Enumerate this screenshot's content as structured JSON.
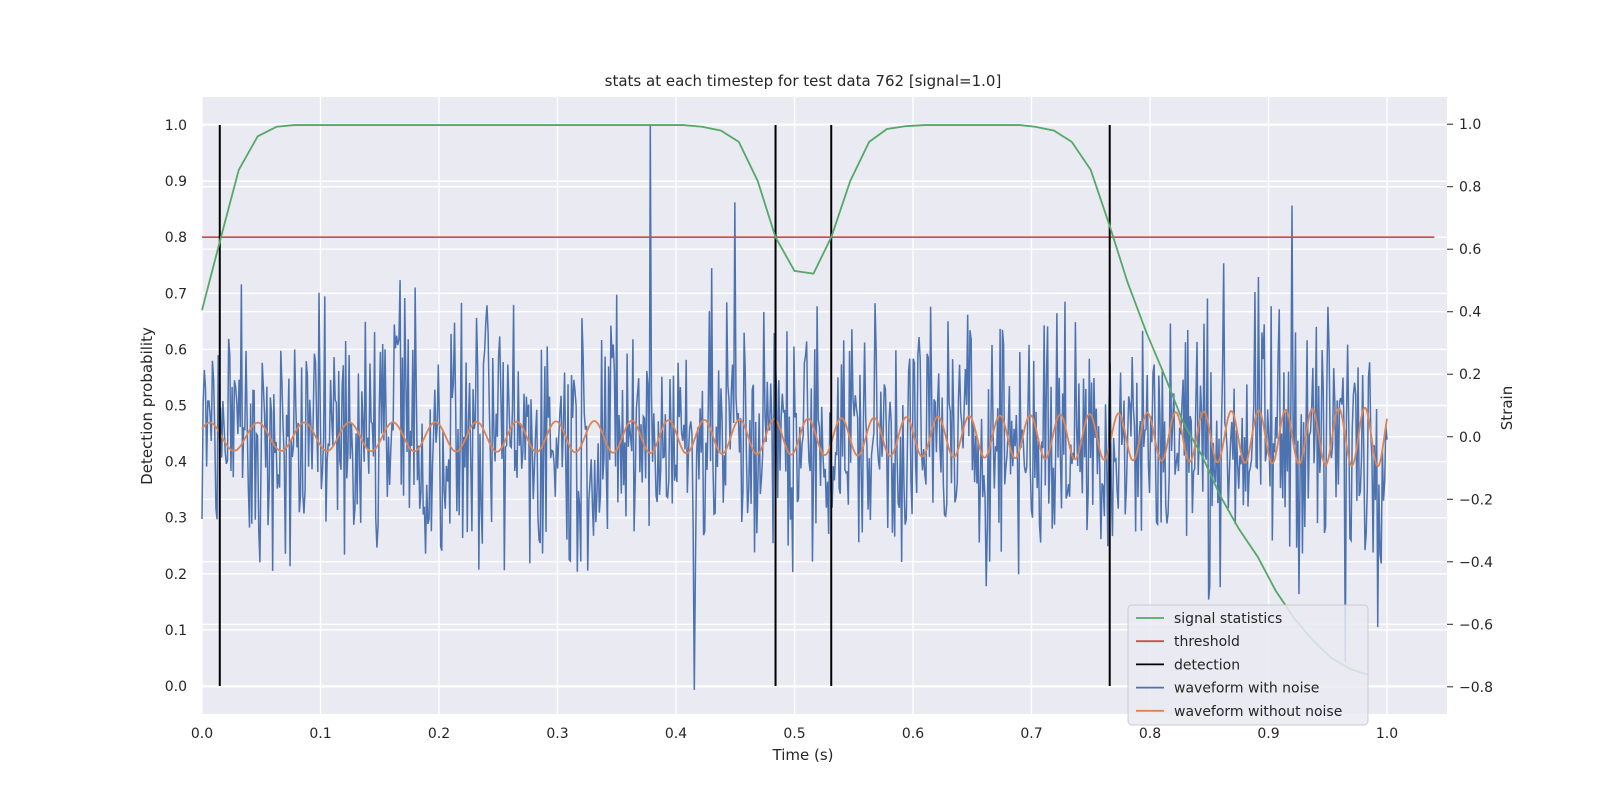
{
  "chart_data": {
    "type": "line",
    "title": "stats at each timestep for test data 762 [signal=1.0]",
    "xlabel": "Time (s)",
    "ylabel": "Detection probability",
    "y2label": "Strain",
    "xlim": [
      0.0,
      1.05
    ],
    "ylim": [
      -0.05,
      1.05
    ],
    "y2lim": [
      -0.887,
      1.087
    ],
    "xticks": [
      "0.0",
      "0.1",
      "0.2",
      "0.3",
      "0.4",
      "0.5",
      "0.6",
      "0.7",
      "0.8",
      "0.9",
      "1.0"
    ],
    "yticks": [
      "0.0",
      "0.1",
      "0.2",
      "0.3",
      "0.4",
      "0.5",
      "0.6",
      "0.7",
      "0.8",
      "0.9",
      "1.0"
    ],
    "y2ticks": [
      "−0.8",
      "−0.6",
      "−0.4",
      "−0.2",
      "0.0",
      "0.2",
      "0.4",
      "0.6",
      "0.8",
      "1.0"
    ],
    "grid": true,
    "legend_position": "lower-right",
    "colors": {
      "background": "#eaeaf2",
      "grid": "#ffffff",
      "signal_statistics": "#55a868",
      "threshold": "#c44e52",
      "detection": "#000000",
      "waveform_with_noise": "#4c72b0",
      "waveform_without_noise": "#dd8452"
    },
    "series": [
      {
        "name": "signal statistics",
        "axis": "left",
        "x": [
          0.0,
          0.016,
          0.031,
          0.047,
          0.063,
          0.078,
          0.094,
          0.11,
          0.2,
          0.3,
          0.39,
          0.406,
          0.422,
          0.438,
          0.453,
          0.469,
          0.484,
          0.5,
          0.516,
          0.531,
          0.547,
          0.563,
          0.578,
          0.594,
          0.61,
          0.69,
          0.703,
          0.719,
          0.734,
          0.75,
          0.766,
          0.781,
          0.797,
          0.813,
          0.828,
          0.844,
          0.859,
          0.875,
          0.891,
          0.906,
          0.922,
          0.938,
          0.953,
          0.969,
          0.984
        ],
        "y": [
          0.67,
          0.8,
          0.92,
          0.98,
          0.997,
          1.0,
          1.0,
          1.0,
          1.0,
          1.0,
          1.0,
          1.0,
          0.997,
          0.99,
          0.97,
          0.9,
          0.8,
          0.74,
          0.735,
          0.8,
          0.9,
          0.97,
          0.993,
          0.998,
          1.0,
          1.0,
          0.997,
          0.99,
          0.97,
          0.92,
          0.82,
          0.72,
          0.63,
          0.55,
          0.47,
          0.41,
          0.34,
          0.28,
          0.23,
          0.17,
          0.12,
          0.08,
          0.05,
          0.03,
          0.02
        ]
      },
      {
        "name": "threshold",
        "axis": "left",
        "x": [
          0.0,
          1.04
        ],
        "y": [
          0.8,
          0.8
        ]
      },
      {
        "name": "detection",
        "axis": "left",
        "x": [
          0.015,
          0.484,
          0.531,
          0.766
        ],
        "y_range": [
          0.0,
          1.0
        ]
      },
      {
        "name": "waveform with noise",
        "axis": "right",
        "x_range": [
          0.0,
          1.0
        ],
        "n_points": 1024,
        "approx_std": 0.2,
        "approx_range": [
          -0.82,
          1.0
        ],
        "notable_peaks": [
          {
            "x": 0.378,
            "y": 1.0
          },
          {
            "x": 0.415,
            "y": -0.81
          },
          {
            "x": 0.45,
            "y": 0.75
          },
          {
            "x": 0.92,
            "y": 0.74
          },
          {
            "x": 0.965,
            "y": -0.72
          }
        ]
      },
      {
        "name": "waveform without noise",
        "axis": "right",
        "x_range": [
          0.0,
          1.0
        ],
        "shape": "chirp",
        "amplitude_start": 0.045,
        "amplitude_end": 0.095,
        "frequency_start_hz": 24,
        "frequency_end_hz": 46
      }
    ]
  }
}
